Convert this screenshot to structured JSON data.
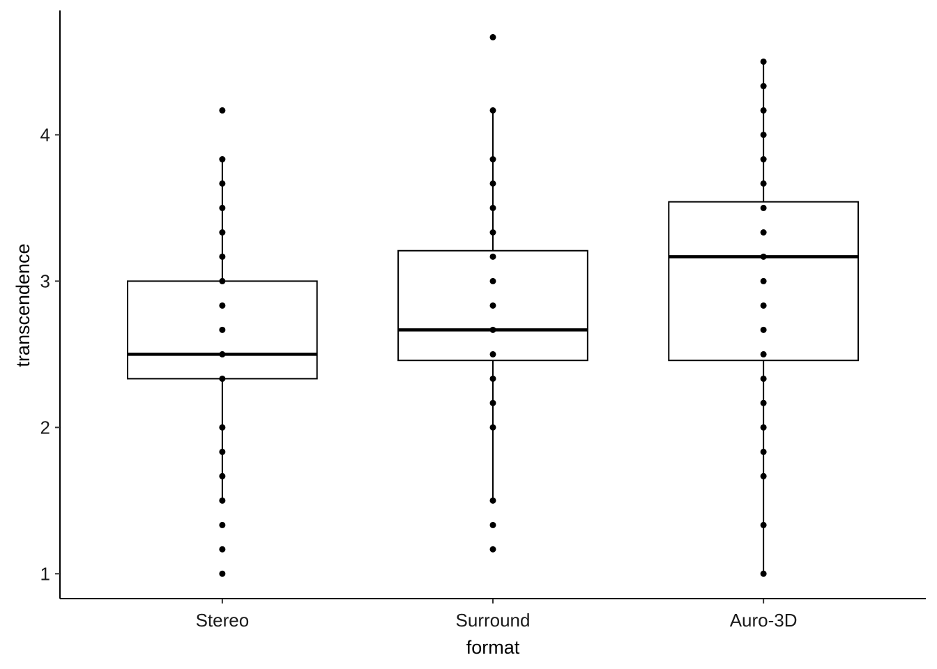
{
  "chart_data": {
    "type": "boxplot",
    "xlabel": "format",
    "ylabel": "transcendence",
    "categories": [
      "Stereo",
      "Surround",
      "Auro-3D"
    ],
    "y_ticks": [
      1,
      2,
      3,
      4
    ],
    "ylim": [
      0.83,
      4.85
    ],
    "boxes": [
      {
        "name": "Stereo",
        "whisker_low": 1.5,
        "q1": 2.333,
        "median": 2.5,
        "q3": 3.0,
        "whisker_high": 3.833
      },
      {
        "name": "Surround",
        "whisker_low": 1.5,
        "q1": 2.458,
        "median": 2.667,
        "q3": 3.208,
        "whisker_high": 4.167
      },
      {
        "name": "Auro-3D",
        "whisker_low": 1.0,
        "q1": 2.458,
        "median": 3.167,
        "q3": 3.542,
        "whisker_high": 4.5
      }
    ],
    "points": [
      {
        "name": "Stereo",
        "values": [
          1.0,
          1.167,
          1.333,
          1.5,
          1.667,
          1.833,
          2.0,
          2.333,
          2.5,
          2.667,
          2.833,
          3.0,
          3.167,
          3.333,
          3.5,
          3.667,
          3.833,
          4.167
        ]
      },
      {
        "name": "Surround",
        "values": [
          1.167,
          1.333,
          1.5,
          2.0,
          2.167,
          2.333,
          2.5,
          2.667,
          2.833,
          3.0,
          3.167,
          3.333,
          3.5,
          3.667,
          3.833,
          4.167,
          4.667
        ]
      },
      {
        "name": "Auro-3D",
        "values": [
          1.0,
          1.333,
          1.667,
          1.833,
          2.0,
          2.167,
          2.333,
          2.5,
          2.667,
          2.833,
          3.0,
          3.167,
          3.333,
          3.5,
          3.667,
          3.833,
          4.0,
          4.167,
          4.333,
          4.5
        ]
      }
    ],
    "grid": false,
    "colors": {
      "box_fill": "#ffffff",
      "stroke": "#000000",
      "point": "#000000"
    }
  }
}
